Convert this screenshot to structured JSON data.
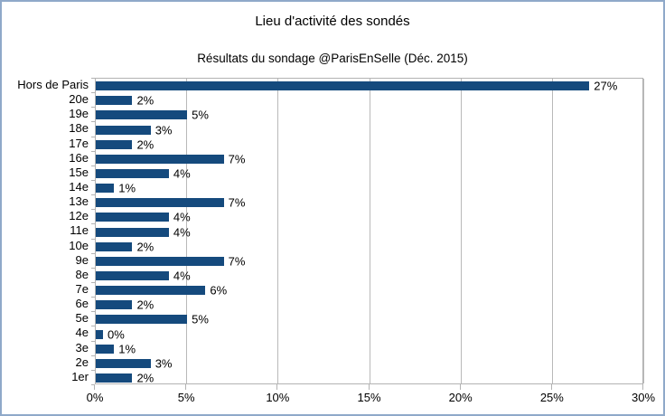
{
  "window": {
    "border_color": "#8fa9c9",
    "background": "#ffffff"
  },
  "chart_data": {
    "type": "bar",
    "orientation": "horizontal",
    "title": "Lieu d'activité des sondés",
    "subtitle": "Résultats du sondage @ParisEnSelle (Déc. 2015)",
    "categories": [
      "Hors de Paris",
      "20e",
      "19e",
      "18e",
      "17e",
      "16e",
      "15e",
      "14e",
      "13e",
      "12e",
      "11e",
      "10e",
      "9e",
      "8e",
      "7e",
      "6e",
      "5e",
      "4e",
      "3e",
      "2e",
      "1er"
    ],
    "values": [
      27,
      2,
      5,
      3,
      2,
      7,
      4,
      1,
      7,
      4,
      4,
      2,
      7,
      4,
      6,
      2,
      5,
      0,
      1,
      3,
      2
    ],
    "data_labels": [
      "27%",
      "2%",
      "5%",
      "3%",
      "2%",
      "7%",
      "4%",
      "1%",
      "7%",
      "4%",
      "4%",
      "2%",
      "7%",
      "4%",
      "6%",
      "2%",
      "5%",
      "0%",
      "1%",
      "3%",
      "2%"
    ],
    "xlim": [
      0,
      30
    ],
    "x_tick_values": [
      0,
      5,
      10,
      15,
      20,
      25,
      30
    ],
    "x_tick_labels": [
      "0%",
      "5%",
      "10%",
      "15%",
      "20%",
      "25%",
      "30%"
    ],
    "bar_color": "#154a7d",
    "grid_color": "#b9b9b9",
    "axis_color": "#b3b3b3",
    "text_color": "#000000",
    "grid": "vertical",
    "legend": "none"
  }
}
